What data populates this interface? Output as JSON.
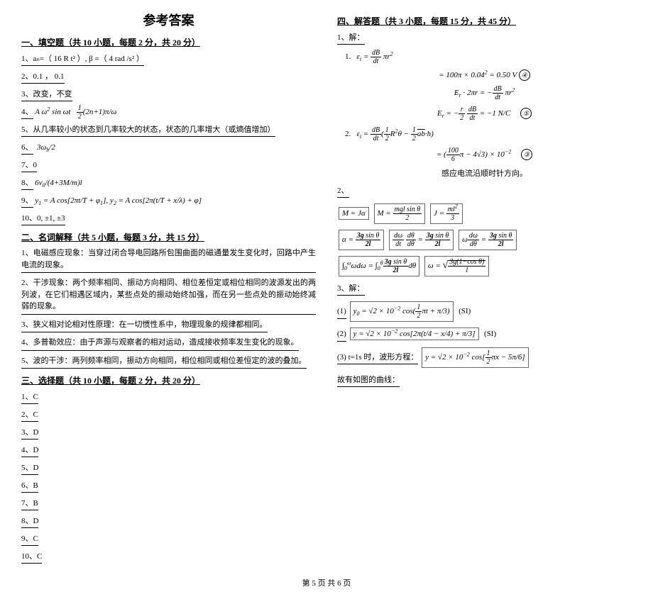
{
  "title": "参考答案",
  "footer": "第 5 页 共 6 页",
  "section1": {
    "head": "一、填空题（共 10 小题，每题 2 分，共 20 分）",
    "q1": "1、aₙ=（ 16 R t² ）, β =（ 4 rad /s² ）",
    "q2": "2、0.1 ， 0.1",
    "q3": "3、改变，不变",
    "q5": "5、从几率较小的状态到几率较大的状态，状态的几率增大（或熵值增加）",
    "q7": "7、0",
    "q10": "10、0, ±1, ±3"
  },
  "section2": {
    "head": "二、名词解释（共 5 小题，每题 3 分，共 15 分）",
    "t1": "1、电磁感应现象：当穿过闭合导电回路所包围曲面的磁通量发生变化时，回路中产生电流的现象。",
    "t2": "2、干涉现象：两个频率相同、振动方向相同、相位差恒定或相位相同的波源发出的两列波，在它们相遇区域内，某些点处的振动始终加强，而在另一些点处的振动始终减弱的现象。",
    "t3": "3、狭义相对论相对性原理：在一切惯性系中，物理现象的规律都相同。",
    "t4": "4、多普勒效应：由于声源与观察者的相对运动，造成接收频率发生变化的现象。",
    "t5": "5、波的干涉：两列频率相同，振动方向相同，相位相同或相位差恒定的波的叠加。"
  },
  "section3": {
    "head": "三、选择题（共 10 小题，每题 2 分，共 20 分）",
    "items": [
      "1、C",
      "2、C",
      "3、D",
      "4、D",
      "5、D",
      "6、B",
      "7、B",
      "8、D",
      "9、C",
      "10、C"
    ]
  },
  "section4": {
    "head": "四、解答题（共 3 小题，每题 15 分，共 45 分）",
    "q1label": "1、解：",
    "q1_1": "1.",
    "q1_2": "2.",
    "note1": "感应电流沿顺时针方向。",
    "q2label": "2、",
    "q3label": "3、解：",
    "q3_1": "(1)",
    "q3_2": "(2)",
    "q3_3": "(3)  t=1s 时，波形方程：",
    "q3_4": "故有如图的曲线：",
    "si": "(SI)"
  }
}
